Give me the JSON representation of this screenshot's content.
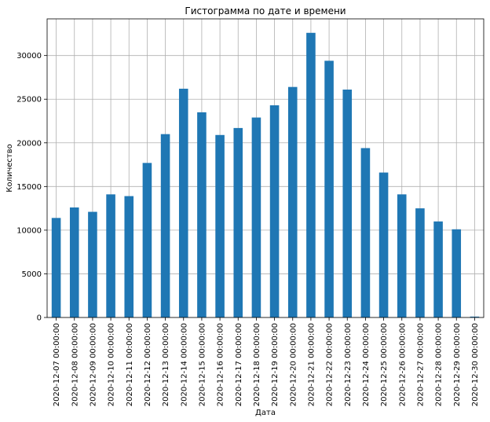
{
  "chart_data": {
    "type": "bar",
    "title": "Гистограмма по дате и времени",
    "xlabel": "Дата",
    "ylabel": "Количество",
    "categories": [
      "2020-12-07 00:00:00",
      "2020-12-08 00:00:00",
      "2020-12-09 00:00:00",
      "2020-12-10 00:00:00",
      "2020-12-11 00:00:00",
      "2020-12-12 00:00:00",
      "2020-12-13 00:00:00",
      "2020-12-14 00:00:00",
      "2020-12-15 00:00:00",
      "2020-12-16 00:00:00",
      "2020-12-17 00:00:00",
      "2020-12-18 00:00:00",
      "2020-12-19 00:00:00",
      "2020-12-20 00:00:00",
      "2020-12-21 00:00:00",
      "2020-12-22 00:00:00",
      "2020-12-23 00:00:00",
      "2020-12-24 00:00:00",
      "2020-12-25 00:00:00",
      "2020-12-26 00:00:00",
      "2020-12-27 00:00:00",
      "2020-12-28 00:00:00",
      "2020-12-29 00:00:00",
      "2020-12-30 00:00:00"
    ],
    "values": [
      11400,
      12600,
      12100,
      14100,
      13900,
      17700,
      21000,
      26200,
      23500,
      20900,
      21700,
      22900,
      24300,
      26400,
      32600,
      29400,
      26100,
      19400,
      16600,
      14100,
      12500,
      11000,
      10100,
      100
    ],
    "yticks": [
      0,
      5000,
      10000,
      15000,
      20000,
      25000,
      30000
    ],
    "ylim": [
      0,
      34200
    ],
    "grid": true,
    "bar_color": "#1f77b4"
  }
}
